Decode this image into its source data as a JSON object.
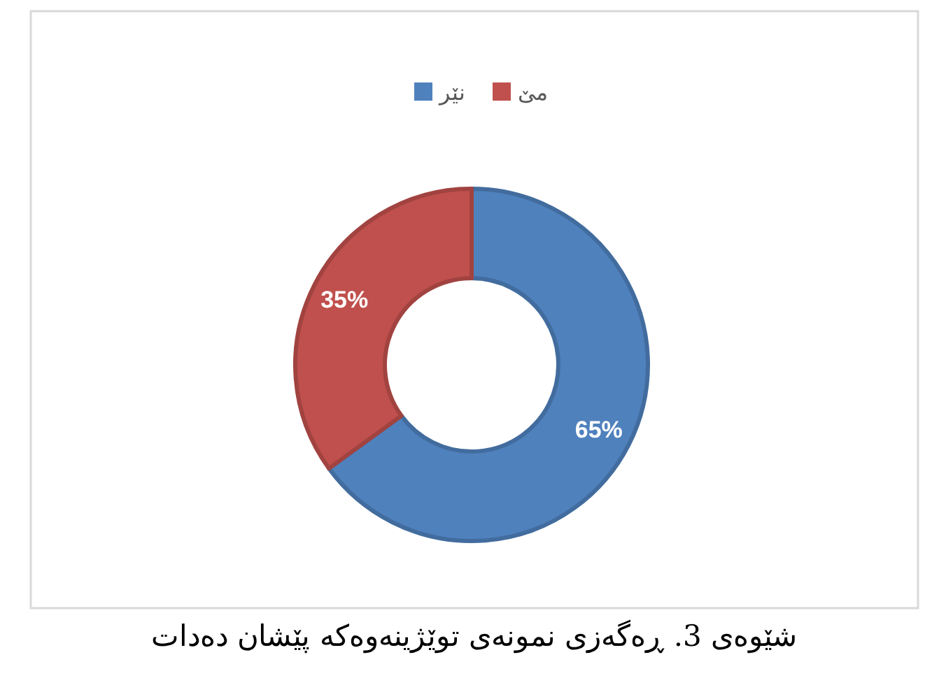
{
  "chart_data": {
    "type": "donut",
    "categories": [
      "نێر",
      "مێ"
    ],
    "values": [
      65,
      35
    ],
    "colors": [
      "#4f81bd",
      "#c0504d"
    ],
    "value_labels": [
      "65%",
      "35%"
    ],
    "legend": "top",
    "annotations": [
      "شێوەی 3. ڕەگەزی نمونەی توێژینەوەکە پێشان دەدات"
    ]
  }
}
